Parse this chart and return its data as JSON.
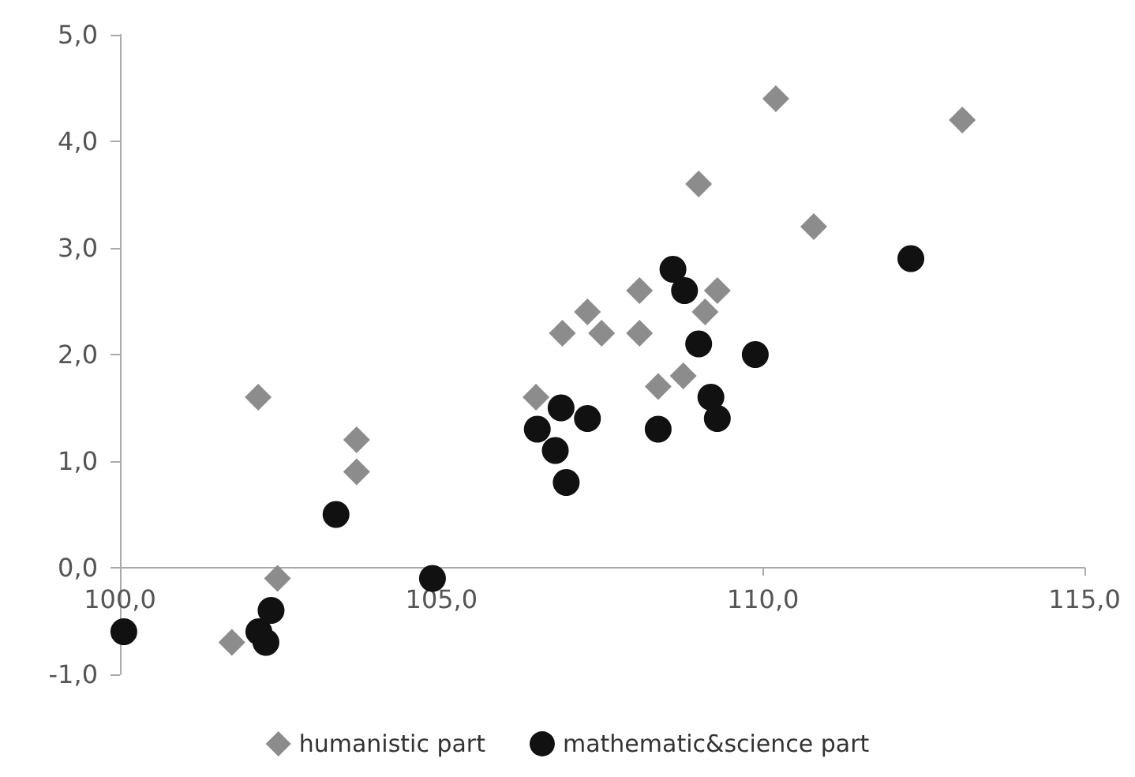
{
  "chart_data": {
    "type": "scatter",
    "xlim": [
      100,
      115
    ],
    "xticks": [
      {
        "value": 100,
        "label": "100,0"
      },
      {
        "value": 105,
        "label": "105,0"
      },
      {
        "value": 110,
        "label": "110,0"
      },
      {
        "value": 115,
        "label": "115,0"
      }
    ],
    "ylim": [
      -1,
      5
    ],
    "yticks": [
      {
        "value": -1,
        "label": "-1,0"
      },
      {
        "value": 0,
        "label": "0,0"
      },
      {
        "value": 1,
        "label": "1,0"
      },
      {
        "value": 2,
        "label": "2,0"
      },
      {
        "value": 3,
        "label": "3,0"
      },
      {
        "value": 4,
        "label": "4,0"
      },
      {
        "value": 5,
        "label": "5,0"
      }
    ],
    "grid": false,
    "legend": "bottom",
    "series": [
      {
        "name": "humanistic part",
        "color": "#8c8c8c",
        "marker": "diamond",
        "x": [
          102.15,
          101.74,
          102.45,
          103.68,
          103.68,
          106.47,
          106.88,
          110.2,
          113.1,
          109.0,
          110.79,
          108.08,
          109.29,
          107.27,
          109.1,
          107.49,
          108.08,
          108.76,
          108.37
        ],
        "values": [
          1.6,
          -0.7,
          -0.1,
          1.2,
          0.9,
          1.6,
          2.2,
          4.4,
          4.2,
          3.6,
          3.2,
          2.6,
          2.6,
          2.4,
          2.4,
          2.2,
          2.2,
          1.8,
          1.7
        ]
      },
      {
        "name": "mathematic&science part",
        "color": "#111111",
        "marker": "circle",
        "x": [
          100.06,
          102.35,
          102.16,
          102.27,
          103.36,
          104.86,
          106.49,
          106.86,
          106.77,
          106.94,
          108.6,
          108.78,
          112.3,
          109.0,
          109.88,
          107.27,
          109.19,
          109.29,
          108.37
        ],
        "values": [
          -0.6,
          -0.4,
          -0.6,
          -0.7,
          0.5,
          -0.1,
          1.3,
          1.5,
          1.1,
          0.8,
          2.8,
          2.6,
          2.9,
          2.1,
          2.0,
          1.4,
          1.6,
          1.4,
          1.3
        ]
      }
    ]
  }
}
